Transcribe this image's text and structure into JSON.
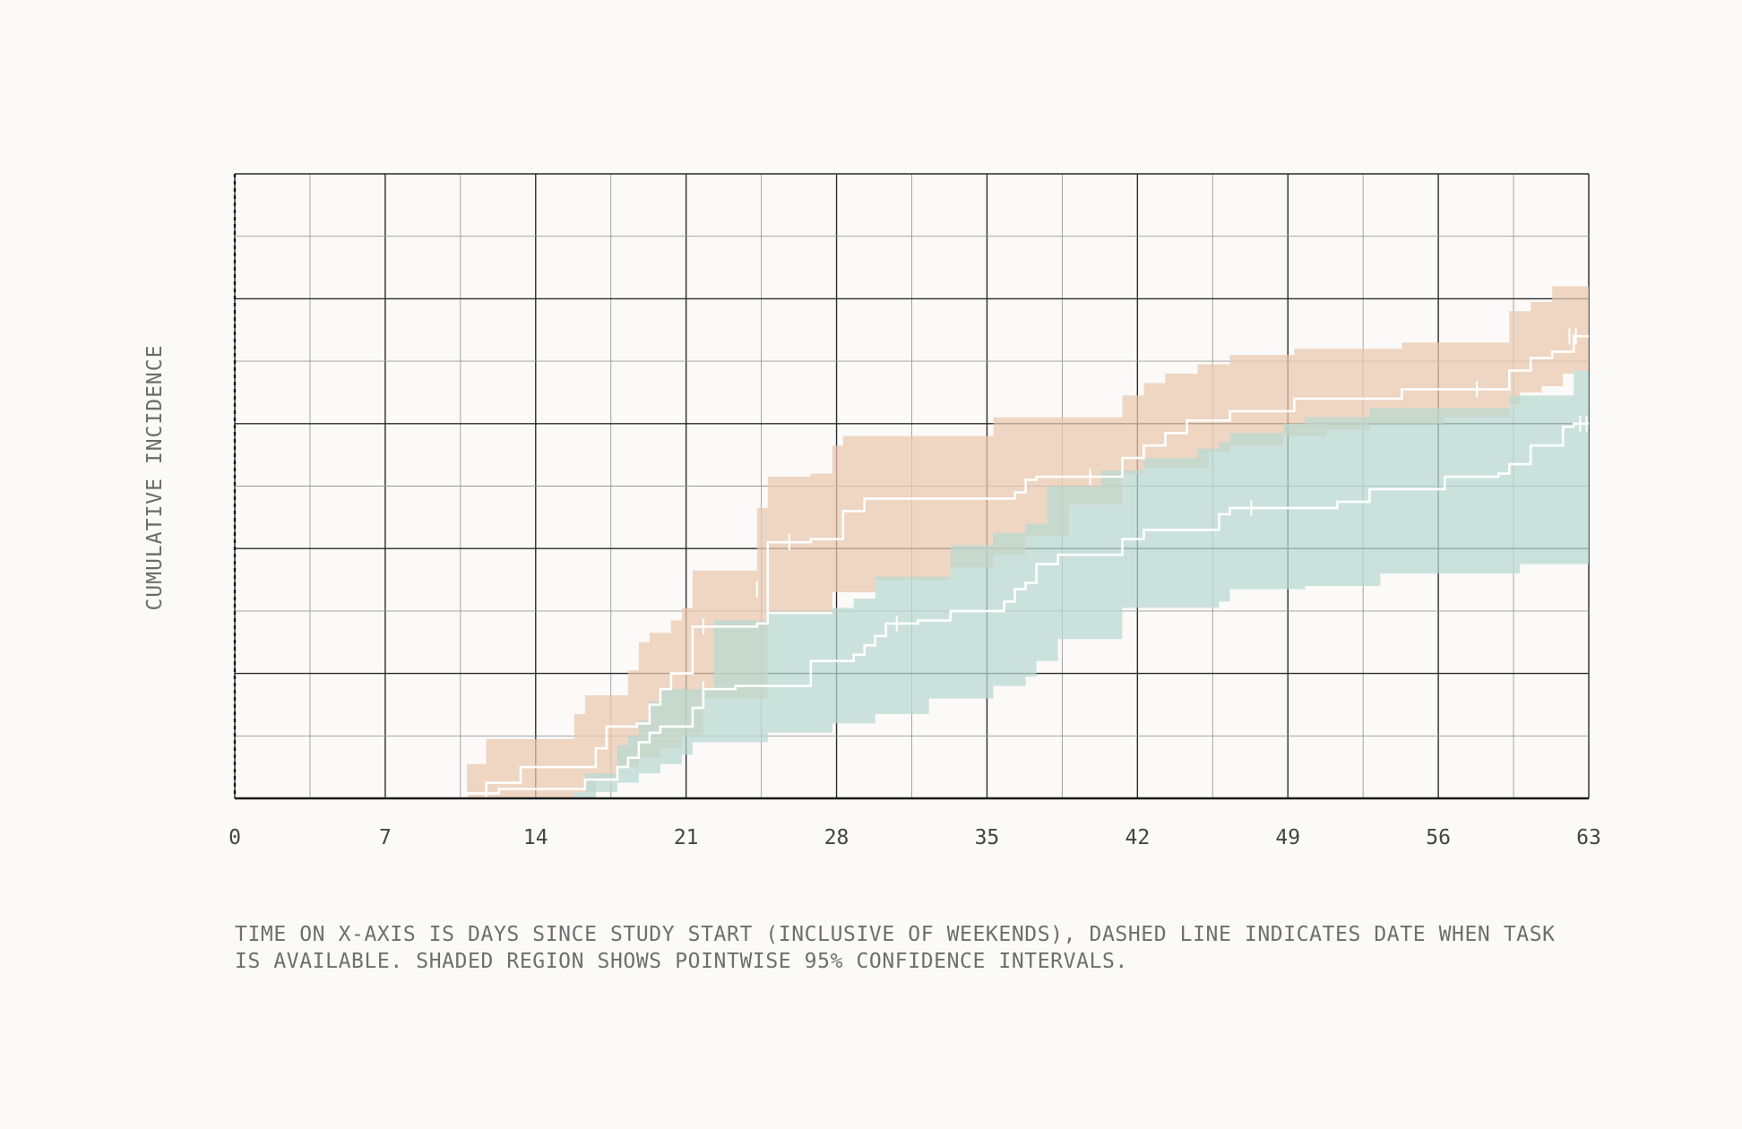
{
  "chart_data": {
    "type": "line",
    "title": "",
    "xlabel": "",
    "ylabel": "CUMULATIVE INCIDENCE",
    "caption": "TIME ON X-AXIS IS DAYS SINCE STUDY START (INCLUSIVE OF WEEKENDS), DASHED LINE INDICATES DATE WHEN TASK IS AVAILABLE. SHADED REGION SHOWS POINTWISE 95% CONFIDENCE INTERVALS.",
    "xlim": [
      0,
      63
    ],
    "ylim": [
      0,
      1
    ],
    "x_ticks": [
      0,
      7,
      14,
      21,
      28,
      35,
      42,
      49,
      56,
      63
    ],
    "x_tick_labels": [
      "0",
      "7",
      "14",
      "21",
      "28",
      "35",
      "42",
      "49",
      "56",
      "63"
    ],
    "x_minor_step": 3.5,
    "y_major_step": 0.2,
    "y_minor_step": 0.1,
    "grid": true,
    "task_available_day": 0,
    "series": [
      {
        "color": "#e9c7ae",
        "line_color": "#ffffff",
        "steps": [
          [
            0,
            0
          ],
          [
            10.8,
            0.008
          ],
          [
            11.7,
            0.025
          ],
          [
            13.3,
            0.05
          ],
          [
            16.8,
            0.08
          ],
          [
            17.3,
            0.115
          ],
          [
            18.7,
            0.12
          ],
          [
            19.3,
            0.15
          ],
          [
            19.8,
            0.175
          ],
          [
            20.3,
            0.2
          ],
          [
            21.3,
            0.275
          ],
          [
            24.3,
            0.28
          ],
          [
            24.8,
            0.41
          ],
          [
            26.8,
            0.415
          ],
          [
            28.3,
            0.46
          ],
          [
            29.3,
            0.48
          ],
          [
            36.3,
            0.49
          ],
          [
            36.8,
            0.51
          ],
          [
            37.3,
            0.515
          ],
          [
            41.3,
            0.545
          ],
          [
            42.3,
            0.565
          ],
          [
            43.3,
            0.585
          ],
          [
            44.3,
            0.605
          ],
          [
            46.3,
            0.62
          ],
          [
            49.3,
            0.64
          ],
          [
            54.3,
            0.655
          ],
          [
            59.3,
            0.685
          ],
          [
            60.3,
            0.705
          ],
          [
            61.3,
            0.715
          ],
          [
            62.3,
            0.74
          ],
          [
            63,
            0.74
          ]
        ],
        "lower": [
          [
            0,
            0
          ],
          [
            10.8,
            0
          ],
          [
            15.8,
            0.01
          ],
          [
            16.8,
            0.03
          ],
          [
            17.8,
            0.05
          ],
          [
            18.8,
            0.065
          ],
          [
            19.8,
            0.08
          ],
          [
            20.8,
            0.1
          ],
          [
            21.8,
            0.16
          ],
          [
            24.8,
            0.3
          ],
          [
            27.8,
            0.33
          ],
          [
            29.8,
            0.35
          ],
          [
            33.3,
            0.37
          ],
          [
            35.3,
            0.39
          ],
          [
            36.8,
            0.42
          ],
          [
            38.8,
            0.47
          ],
          [
            41.3,
            0.52
          ],
          [
            42.3,
            0.53
          ],
          [
            45.3,
            0.555
          ],
          [
            46.3,
            0.565
          ],
          [
            48.8,
            0.58
          ],
          [
            50.8,
            0.59
          ],
          [
            52.8,
            0.6
          ],
          [
            56.3,
            0.61
          ],
          [
            59.3,
            0.63
          ],
          [
            59.8,
            0.65
          ],
          [
            60.8,
            0.66
          ],
          [
            61.8,
            0.68
          ],
          [
            62.3,
            0.685
          ],
          [
            63,
            0.685
          ]
        ],
        "upper": [
          [
            0,
            0
          ],
          [
            10.8,
            0.055
          ],
          [
            11.7,
            0.095
          ],
          [
            15.8,
            0.135
          ],
          [
            16.3,
            0.165
          ],
          [
            18.3,
            0.205
          ],
          [
            18.8,
            0.25
          ],
          [
            19.3,
            0.265
          ],
          [
            20.3,
            0.285
          ],
          [
            20.8,
            0.305
          ],
          [
            21.3,
            0.365
          ],
          [
            24.3,
            0.465
          ],
          [
            24.8,
            0.515
          ],
          [
            26.8,
            0.52
          ],
          [
            27.8,
            0.565
          ],
          [
            28.3,
            0.58
          ],
          [
            35.3,
            0.61
          ],
          [
            41.3,
            0.645
          ],
          [
            42.3,
            0.665
          ],
          [
            43.3,
            0.68
          ],
          [
            44.8,
            0.695
          ],
          [
            46.3,
            0.71
          ],
          [
            49.3,
            0.72
          ],
          [
            54.3,
            0.73
          ],
          [
            59.3,
            0.78
          ],
          [
            60.3,
            0.795
          ],
          [
            61.3,
            0.82
          ],
          [
            63,
            0.82
          ]
        ],
        "censor": [
          [
            21.8,
            0.275
          ],
          [
            24.3,
            0.335
          ],
          [
            25.8,
            0.41
          ],
          [
            39.8,
            0.515
          ],
          [
            57.8,
            0.655
          ],
          [
            62.1,
            0.74
          ],
          [
            62.4,
            0.74
          ]
        ]
      },
      {
        "color": "#b9d8d1",
        "line_color": "#ffffff",
        "steps": [
          [
            0,
            0
          ],
          [
            11.7,
            0.008
          ],
          [
            12.3,
            0.015
          ],
          [
            16.3,
            0.03
          ],
          [
            17.8,
            0.05
          ],
          [
            18.3,
            0.065
          ],
          [
            18.8,
            0.09
          ],
          [
            19.3,
            0.105
          ],
          [
            19.8,
            0.115
          ],
          [
            21.3,
            0.145
          ],
          [
            21.8,
            0.175
          ],
          [
            23.3,
            0.18
          ],
          [
            26.8,
            0.22
          ],
          [
            28.8,
            0.23
          ],
          [
            29.3,
            0.245
          ],
          [
            29.8,
            0.26
          ],
          [
            30.3,
            0.28
          ],
          [
            31.8,
            0.285
          ],
          [
            33.3,
            0.3
          ],
          [
            35.8,
            0.315
          ],
          [
            36.3,
            0.335
          ],
          [
            36.8,
            0.345
          ],
          [
            37.3,
            0.375
          ],
          [
            38.3,
            0.39
          ],
          [
            41.3,
            0.415
          ],
          [
            42.3,
            0.43
          ],
          [
            45.8,
            0.455
          ],
          [
            46.3,
            0.465
          ],
          [
            51.3,
            0.475
          ],
          [
            52.8,
            0.495
          ],
          [
            56.3,
            0.515
          ],
          [
            58.8,
            0.52
          ],
          [
            59.3,
            0.535
          ],
          [
            60.3,
            0.565
          ],
          [
            61.8,
            0.595
          ],
          [
            62.3,
            0.6
          ],
          [
            63,
            0.6
          ]
        ],
        "lower": [
          [
            0,
            0
          ],
          [
            15.8,
            0
          ],
          [
            16.8,
            0.01
          ],
          [
            17.8,
            0.025
          ],
          [
            18.8,
            0.04
          ],
          [
            19.8,
            0.055
          ],
          [
            20.8,
            0.07
          ],
          [
            21.3,
            0.09
          ],
          [
            24.8,
            0.105
          ],
          [
            27.8,
            0.12
          ],
          [
            29.8,
            0.135
          ],
          [
            32.3,
            0.16
          ],
          [
            35.3,
            0.18
          ],
          [
            36.8,
            0.195
          ],
          [
            37.3,
            0.22
          ],
          [
            38.3,
            0.255
          ],
          [
            41.3,
            0.305
          ],
          [
            45.8,
            0.315
          ],
          [
            46.3,
            0.335
          ],
          [
            49.8,
            0.34
          ],
          [
            53.3,
            0.36
          ],
          [
            59.8,
            0.375
          ],
          [
            63,
            0.375
          ]
        ],
        "upper": [
          [
            0,
            0
          ],
          [
            15.8,
            0.01
          ],
          [
            16.3,
            0.04
          ],
          [
            17.8,
            0.085
          ],
          [
            18.3,
            0.1
          ],
          [
            18.8,
            0.125
          ],
          [
            19.3,
            0.155
          ],
          [
            19.8,
            0.175
          ],
          [
            22.3,
            0.285
          ],
          [
            24.8,
            0.295
          ],
          [
            27.8,
            0.305
          ],
          [
            28.8,
            0.32
          ],
          [
            29.8,
            0.355
          ],
          [
            33.3,
            0.405
          ],
          [
            35.3,
            0.425
          ],
          [
            36.8,
            0.44
          ],
          [
            37.8,
            0.5
          ],
          [
            40.3,
            0.525
          ],
          [
            42.3,
            0.545
          ],
          [
            44.8,
            0.56
          ],
          [
            45.8,
            0.57
          ],
          [
            46.3,
            0.585
          ],
          [
            48.8,
            0.6
          ],
          [
            49.8,
            0.61
          ],
          [
            52.8,
            0.625
          ],
          [
            59.3,
            0.645
          ],
          [
            62.3,
            0.685
          ],
          [
            63,
            0.685
          ]
        ],
        "censor": [
          [
            21.8,
            0.175
          ],
          [
            30.8,
            0.28
          ],
          [
            47.3,
            0.465
          ],
          [
            62.6,
            0.6
          ],
          [
            62.9,
            0.6
          ]
        ]
      }
    ]
  }
}
